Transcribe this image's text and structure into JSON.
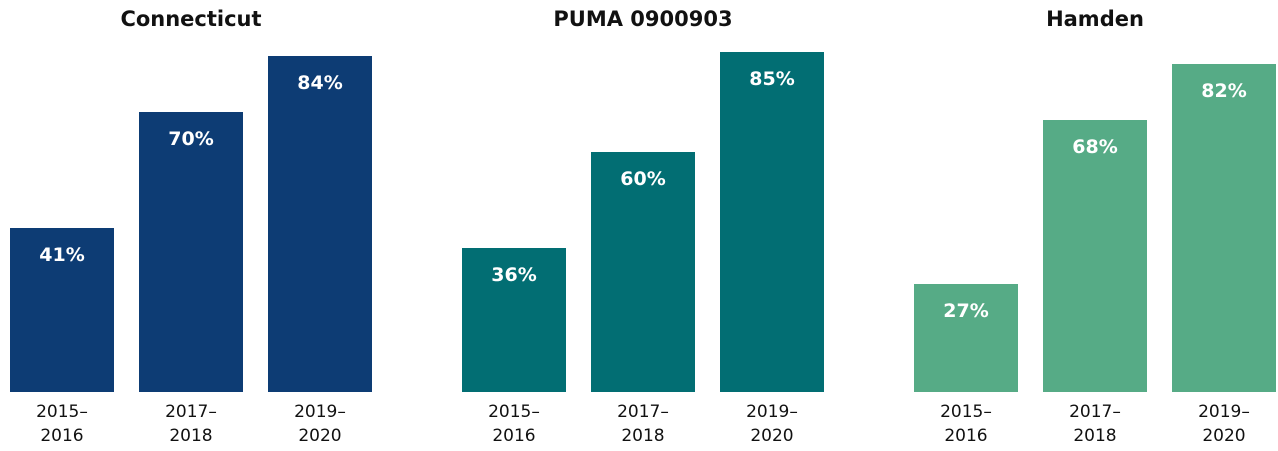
{
  "chart_data": [
    {
      "type": "bar",
      "title": "Connecticut",
      "categories": [
        [
          "2015–",
          "2016"
        ],
        [
          "2017–",
          "2018"
        ],
        [
          "2019–",
          "2020"
        ]
      ],
      "values": [
        41,
        70,
        84
      ],
      "value_labels": [
        "41%",
        "70%",
        "84%"
      ],
      "color": "#0d3c74",
      "ylim": [
        0,
        100
      ],
      "grid": false
    },
    {
      "type": "bar",
      "title": "PUMA 0900903",
      "categories": [
        [
          "2015–",
          "2016"
        ],
        [
          "2017–",
          "2018"
        ],
        [
          "2019–",
          "2020"
        ]
      ],
      "values": [
        36,
        60,
        85
      ],
      "value_labels": [
        "36%",
        "60%",
        "85%"
      ],
      "color": "#026e73",
      "ylim": [
        0,
        100
      ],
      "grid": false
    },
    {
      "type": "bar",
      "title": "Hamden",
      "categories": [
        [
          "2015–",
          "2016"
        ],
        [
          "2017–",
          "2018"
        ],
        [
          "2019–",
          "2020"
        ]
      ],
      "values": [
        27,
        68,
        82
      ],
      "value_labels": [
        "27%",
        "68%",
        "82%"
      ],
      "color": "#56ab86",
      "ylim": [
        0,
        100
      ],
      "grid": false
    }
  ]
}
